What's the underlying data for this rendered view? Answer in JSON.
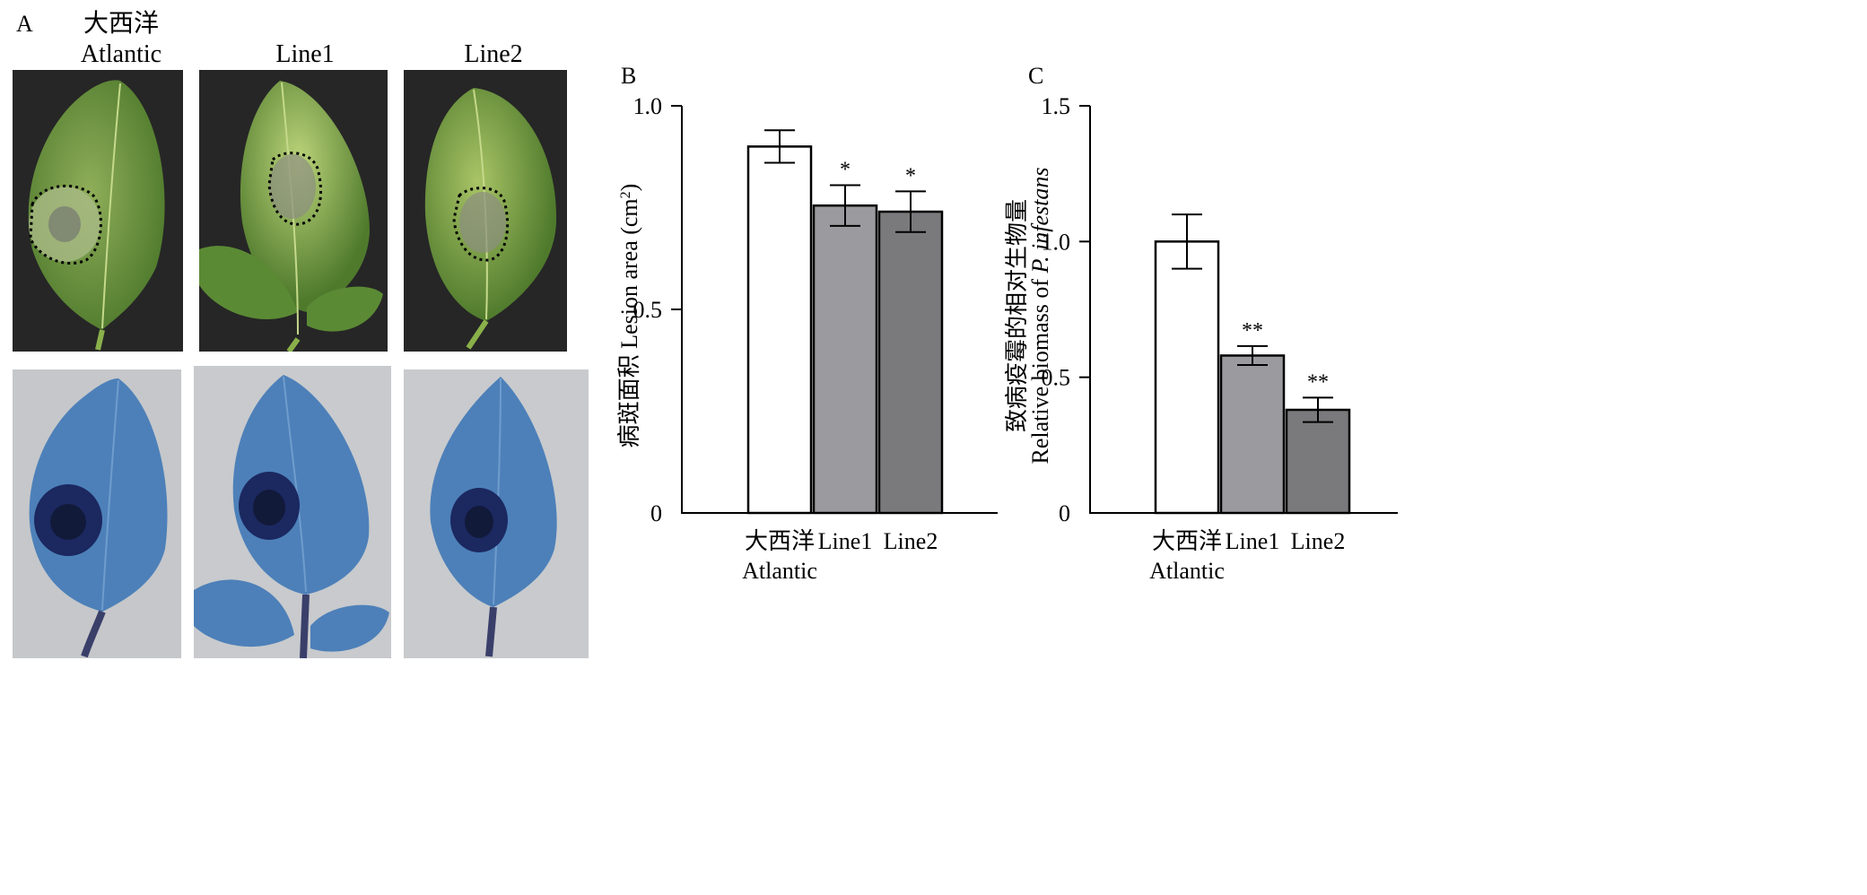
{
  "panel_a": {
    "letter": "A",
    "columns": [
      {
        "label_cn": "大西洋",
        "label_en": "Atlantic"
      },
      {
        "label_cn": "",
        "label_en": "Line1"
      },
      {
        "label_cn": "",
        "label_en": "Line2"
      }
    ]
  },
  "chart_data": [
    {
      "panel": "B",
      "type": "bar",
      "categories": [
        {
          "cn": "大西洋",
          "en": "Atlantic"
        },
        {
          "cn": "",
          "en": "Line1"
        },
        {
          "cn": "",
          "en": "Line2"
        }
      ],
      "values": [
        0.9,
        0.755,
        0.74
      ],
      "errors": [
        0.04,
        0.05,
        0.05
      ],
      "significance": [
        "",
        "*",
        "*"
      ],
      "ylabel_cn": "病斑面积",
      "ylabel_en": "Lesion area (cm",
      "ylabel_sup": "2",
      "ylabel_close": ")",
      "ylim": [
        0,
        1.0
      ],
      "yticks": [
        "0",
        "0.5",
        "1.0"
      ],
      "ytick_values": [
        0,
        0.5,
        1.0
      ],
      "bar_colors": [
        "#ffffff",
        "#9b9a9f",
        "#7a7a7c"
      ]
    },
    {
      "panel": "C",
      "type": "bar",
      "categories": [
        {
          "cn": "大西洋",
          "en": "Atlantic"
        },
        {
          "cn": "",
          "en": "Line1"
        },
        {
          "cn": "",
          "en": "Line2"
        }
      ],
      "values": [
        1.0,
        0.58,
        0.38
      ],
      "errors": [
        0.1,
        0.035,
        0.045
      ],
      "significance": [
        "",
        "**",
        "**"
      ],
      "ylabel_line1": "致病疫霉的相对生物量",
      "ylabel_line2_prefix": "Relative biomass of ",
      "ylabel_line2_italic": "P. infestans",
      "ylim": [
        0,
        1.5
      ],
      "yticks": [
        "0",
        "0.5",
        "1.0",
        "1.5"
      ],
      "ytick_values": [
        0,
        0.5,
        1.0,
        1.5
      ],
      "bar_colors": [
        "#ffffff",
        "#9b9a9f",
        "#7a7a7c"
      ]
    }
  ]
}
